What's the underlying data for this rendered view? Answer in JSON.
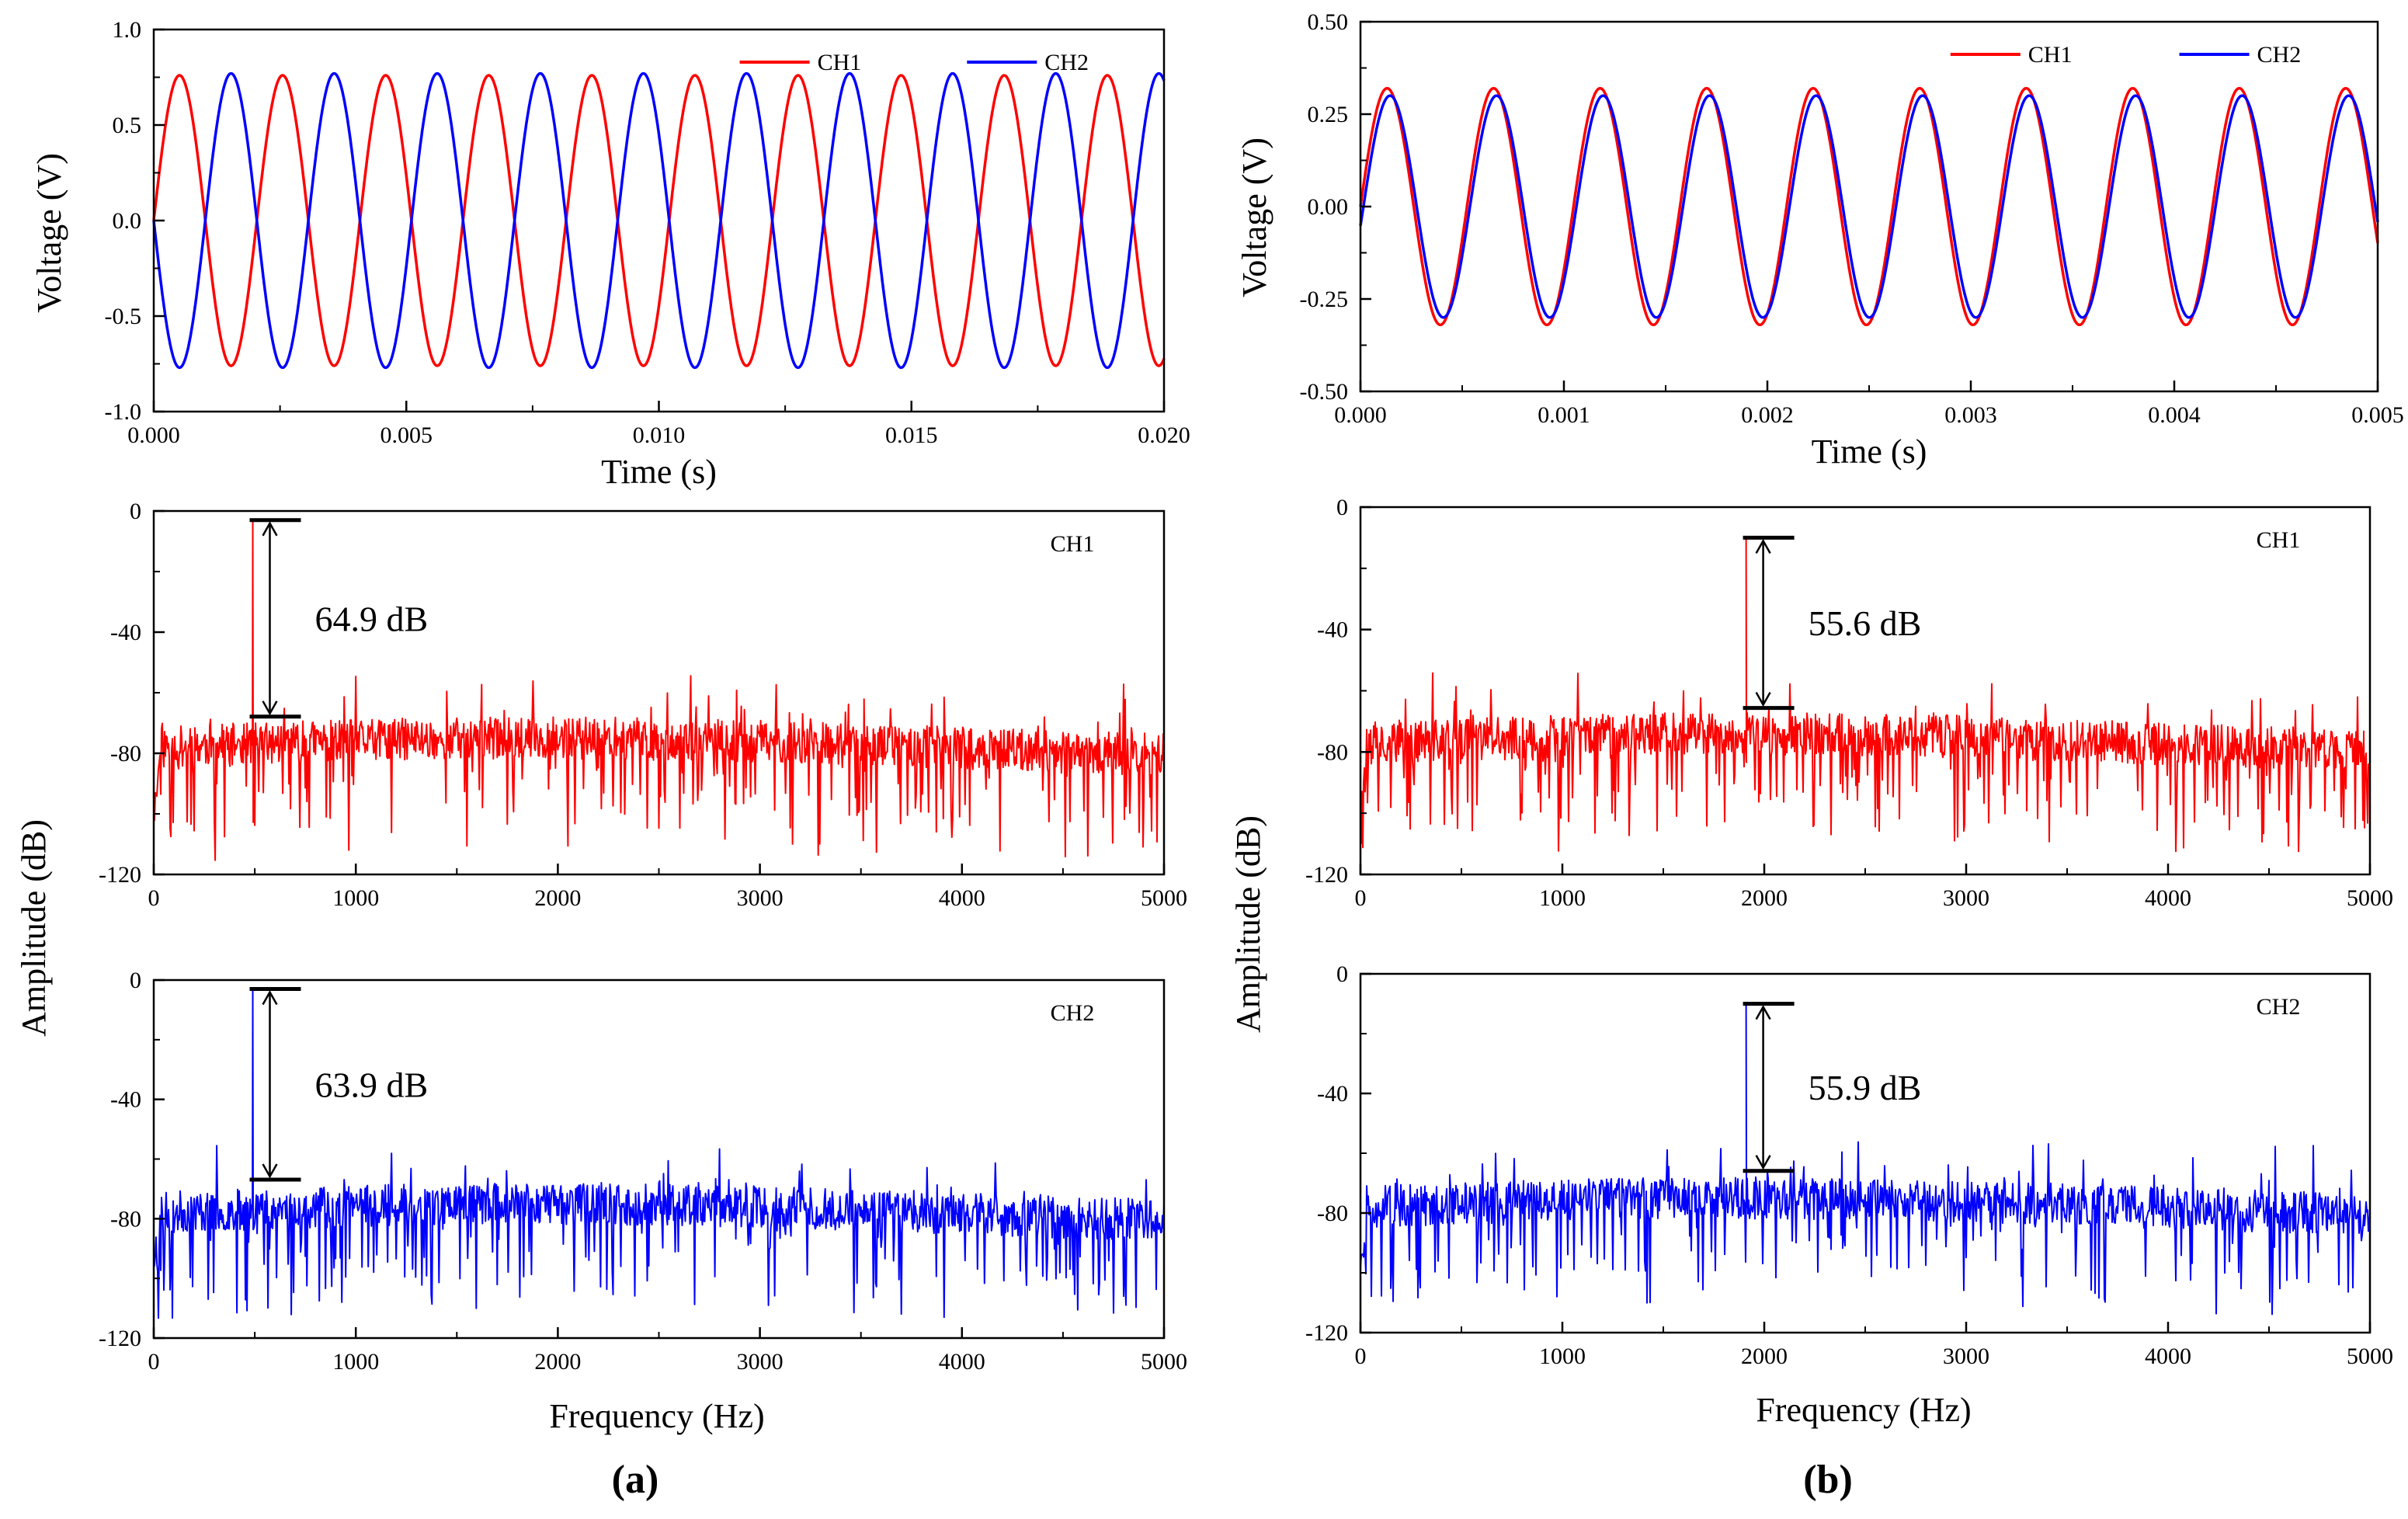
{
  "colors": {
    "ch1": "#ff0000",
    "ch2": "#0000ff",
    "axes": "#000000"
  },
  "labels": {
    "voltage": "Voltage (V)",
    "time": "Time (s)",
    "amplitude": "Amplitude (dB)",
    "frequency": "Frequency (Hz)",
    "panel_a": "(a)",
    "panel_b": "(b)"
  },
  "chart_data": [
    {
      "id": "a_time",
      "type": "line",
      "xlabel": "Time (s)",
      "ylabel": "Voltage (V)",
      "xlim": [
        0,
        0.02
      ],
      "ylim": [
        -1.0,
        1.0
      ],
      "xticks": [
        "0.000",
        "0.005",
        "0.010",
        "0.015",
        "0.020"
      ],
      "yticks": [
        "-1.0",
        "-0.5",
        "0.0",
        "0.5",
        "1.0"
      ],
      "legend": {
        "position": "top-right",
        "entries": [
          "CH1",
          "CH2"
        ]
      },
      "series": [
        {
          "name": "CH1",
          "color": "#ff0000",
          "kind": "sine",
          "frequency_hz": 490,
          "amplitude_v": 0.76,
          "phase_deg": 0
        },
        {
          "name": "CH2",
          "color": "#0000ff",
          "kind": "sine",
          "frequency_hz": 490,
          "amplitude_v": 0.77,
          "phase_deg": 180
        }
      ]
    },
    {
      "id": "b_time",
      "type": "line",
      "xlabel": "Time (s)",
      "ylabel": "Voltage (V)",
      "xlim": [
        0,
        0.005
      ],
      "ylim": [
        -0.5,
        0.5
      ],
      "xticks": [
        "0.000",
        "0.001",
        "0.002",
        "0.003",
        "0.004",
        "0.005"
      ],
      "yticks": [
        "-0.50",
        "-0.25",
        "0.00",
        "0.25",
        "0.50"
      ],
      "legend": {
        "position": "top-right",
        "entries": [
          "CH1",
          "CH2"
        ]
      },
      "series": [
        {
          "name": "CH1",
          "color": "#ff0000",
          "kind": "sine",
          "frequency_hz": 1910,
          "amplitude_v": 0.32,
          "phase_deg": 0
        },
        {
          "name": "CH2",
          "color": "#0000ff",
          "kind": "sine",
          "frequency_hz": 1910,
          "amplitude_v": 0.3,
          "phase_deg": -10
        }
      ]
    },
    {
      "id": "a_ch1",
      "type": "line",
      "ylabel": "Amplitude (dB)",
      "xlim": [
        0,
        5000
      ],
      "ylim": [
        -120,
        0
      ],
      "xticks": [
        "0",
        "1000",
        "2000",
        "3000",
        "4000",
        "5000"
      ],
      "yticks": [
        "-120",
        "-80",
        "-40",
        "0"
      ],
      "legend_label": "CH1",
      "series": [
        {
          "name": "CH1",
          "color": "#ff0000",
          "kind": "spectrum",
          "peak_hz": 490,
          "peak_db": -3,
          "noise_floor_db": -78,
          "seed": 11
        }
      ],
      "annotation": {
        "text": "64.9 dB",
        "top_db": -3,
        "bottom_db": -67.9
      }
    },
    {
      "id": "a_ch2",
      "type": "line",
      "xlabel": "Frequency (Hz)",
      "xlim": [
        0,
        5000
      ],
      "ylim": [
        -120,
        0
      ],
      "xticks": [
        "0",
        "1000",
        "2000",
        "3000",
        "4000",
        "5000"
      ],
      "yticks": [
        "-120",
        "-80",
        "-40",
        "0"
      ],
      "legend_label": "CH2",
      "series": [
        {
          "name": "CH2",
          "color": "#0000ff",
          "kind": "spectrum",
          "peak_hz": 490,
          "peak_db": -3,
          "noise_floor_db": -78,
          "seed": 23
        }
      ],
      "annotation": {
        "text": "63.9 dB",
        "top_db": -3,
        "bottom_db": -66.9
      }
    },
    {
      "id": "b_ch1",
      "type": "line",
      "ylabel": "Amplitude (dB)",
      "xlim": [
        0,
        5000
      ],
      "ylim": [
        -120,
        0
      ],
      "xticks": [
        "0",
        "1000",
        "2000",
        "3000",
        "4000",
        "5000"
      ],
      "yticks": [
        "-120",
        "-80",
        "-40",
        "0"
      ],
      "legend_label": "CH1",
      "series": [
        {
          "name": "CH1",
          "color": "#ff0000",
          "kind": "spectrum",
          "peak_hz": 1910,
          "peak_db": -10,
          "noise_floor_db": -77,
          "seed": 37
        }
      ],
      "annotation": {
        "text": "55.6 dB",
        "top_db": -10,
        "bottom_db": -65.6
      }
    },
    {
      "id": "b_ch2",
      "type": "line",
      "xlabel": "Frequency (Hz)",
      "xlim": [
        0,
        5000
      ],
      "ylim": [
        -120,
        0
      ],
      "xticks": [
        "0",
        "1000",
        "2000",
        "3000",
        "4000",
        "5000"
      ],
      "yticks": [
        "-120",
        "-80",
        "-40",
        "0"
      ],
      "legend_label": "CH2",
      "series": [
        {
          "name": "CH2",
          "color": "#0000ff",
          "kind": "spectrum",
          "peak_hz": 1910,
          "peak_db": -10,
          "noise_floor_db": -78,
          "seed": 51
        }
      ],
      "annotation": {
        "text": "55.9 dB",
        "top_db": -10,
        "bottom_db": -65.9
      }
    }
  ]
}
